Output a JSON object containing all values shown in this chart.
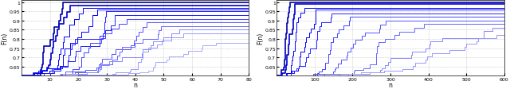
{
  "fig_width": 6.4,
  "fig_height": 1.13,
  "dpi": 100,
  "bg_color": "#ffffff",
  "plot_bg_color": "#ffffff",
  "subplot1": {
    "xlabel": "n",
    "ylabel": "F(n)",
    "xlim": [
      0,
      80
    ],
    "ylim": [
      0.6,
      1.01
    ],
    "xticks": [
      10,
      20,
      30,
      40,
      50,
      60,
      70,
      80
    ],
    "yticks": [
      0.65,
      0.7,
      0.75,
      0.8,
      0.85,
      0.9,
      0.95,
      1.0
    ],
    "ytick_labels": [
      "0.65",
      "0.7",
      "0.75",
      "0.8",
      "0.85",
      "0.9",
      "0.95",
      "1"
    ]
  },
  "subplot2": {
    "xlabel": "n",
    "ylabel": "F(n)",
    "xlim": [
      0,
      600
    ],
    "ylim": [
      0.6,
      1.01
    ],
    "xticks": [
      100,
      200,
      300,
      400,
      500,
      600
    ],
    "yticks": [
      0.65,
      0.7,
      0.75,
      0.8,
      0.85,
      0.9,
      0.95,
      1.0
    ],
    "ytick_labels": [
      "0.65",
      "0.7",
      "0.75",
      "0.8",
      "0.85",
      "0.9",
      "0.95",
      "1"
    ]
  },
  "colors_shades": [
    "#0000aa",
    "#0000cc",
    "#0000ff",
    "#2222ff",
    "#4444ff",
    "#5555ff",
    "#6666ff",
    "#8888ff",
    "#9999ff",
    "#aaaaff",
    "#bbbbff",
    "#ccccff"
  ],
  "lw_dark": 1.2,
  "lw_light": 0.7
}
